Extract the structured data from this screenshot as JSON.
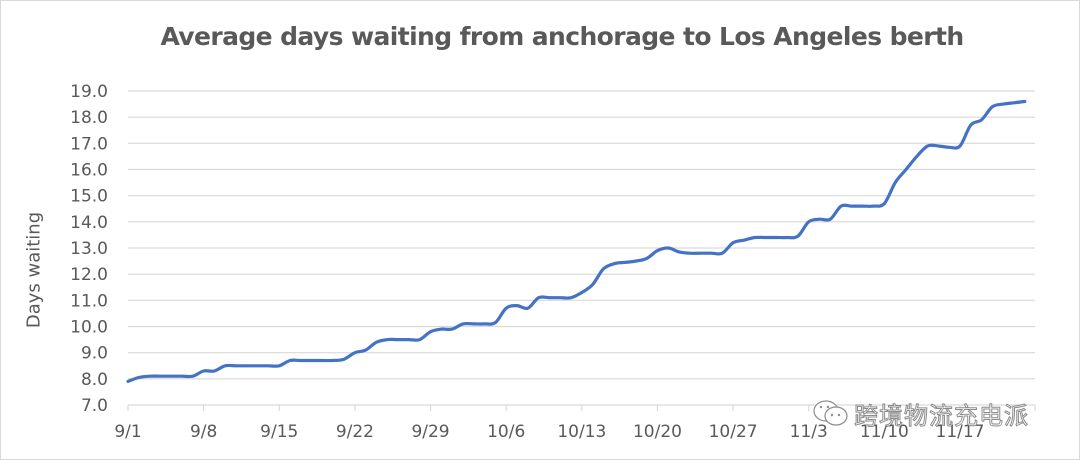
{
  "chart_data": {
    "type": "line",
    "title": "Average days waiting from anchorage to Los Angeles berth",
    "xlabel": "",
    "ylabel": "Days waiting",
    "ylim": [
      7.0,
      19.0
    ],
    "yticks": [
      "7.0",
      "8.0",
      "9.0",
      "10.0",
      "11.0",
      "12.0",
      "13.0",
      "14.0",
      "15.0",
      "16.0",
      "17.0",
      "18.0",
      "19.0"
    ],
    "xticks": [
      "9/1",
      "9/8",
      "9/15",
      "9/22",
      "9/29",
      "10/6",
      "10/13",
      "10/20",
      "10/27",
      "11/3",
      "11/10",
      "11/17"
    ],
    "xtick_days": [
      0,
      7,
      14,
      21,
      28,
      35,
      42,
      49,
      56,
      63,
      70,
      77
    ],
    "grid": "horizontal",
    "legend": "none",
    "series": [
      {
        "name": "Days waiting",
        "color": "#4472c4",
        "x_days_from_9_1": [
          0,
          1,
          2,
          3,
          4,
          5,
          6,
          7,
          8,
          9,
          10,
          11,
          12,
          13,
          14,
          15,
          16,
          17,
          18,
          19,
          20,
          21,
          22,
          23,
          24,
          25,
          26,
          27,
          28,
          29,
          30,
          31,
          32,
          33,
          34,
          35,
          36,
          37,
          38,
          39,
          40,
          41,
          42,
          43,
          44,
          45,
          46,
          47,
          48,
          49,
          50,
          51,
          52,
          53,
          54,
          55,
          56,
          57,
          58,
          59,
          60,
          61,
          62,
          63,
          64,
          65,
          66,
          67,
          68,
          69,
          70,
          71,
          72,
          73,
          74,
          75,
          76,
          77,
          78,
          79,
          80,
          81,
          82,
          83
        ],
        "values": [
          7.9,
          8.05,
          8.1,
          8.1,
          8.1,
          8.1,
          8.1,
          8.3,
          8.3,
          8.5,
          8.5,
          8.5,
          8.5,
          8.5,
          8.5,
          8.7,
          8.7,
          8.7,
          8.7,
          8.7,
          8.75,
          9.0,
          9.1,
          9.4,
          9.5,
          9.5,
          9.5,
          9.5,
          9.8,
          9.9,
          9.9,
          10.1,
          10.1,
          10.1,
          10.15,
          10.7,
          10.8,
          10.7,
          11.1,
          11.1,
          11.1,
          11.1,
          11.3,
          11.6,
          12.2,
          12.4,
          12.45,
          12.5,
          12.6,
          12.9,
          13.0,
          12.85,
          12.8,
          12.8,
          12.8,
          12.8,
          13.2,
          13.3,
          13.4,
          13.4,
          13.4,
          13.4,
          13.45,
          14.0,
          14.1,
          14.1,
          14.6,
          14.6,
          14.6,
          14.6,
          14.7,
          15.5,
          16.0,
          16.5,
          16.9,
          16.9,
          16.85,
          16.9,
          17.7,
          17.9,
          18.4,
          18.5,
          18.55,
          18.6
        ]
      }
    ]
  },
  "watermark": {
    "icon": "wechat-icon",
    "text": "跨境物流充电派"
  }
}
